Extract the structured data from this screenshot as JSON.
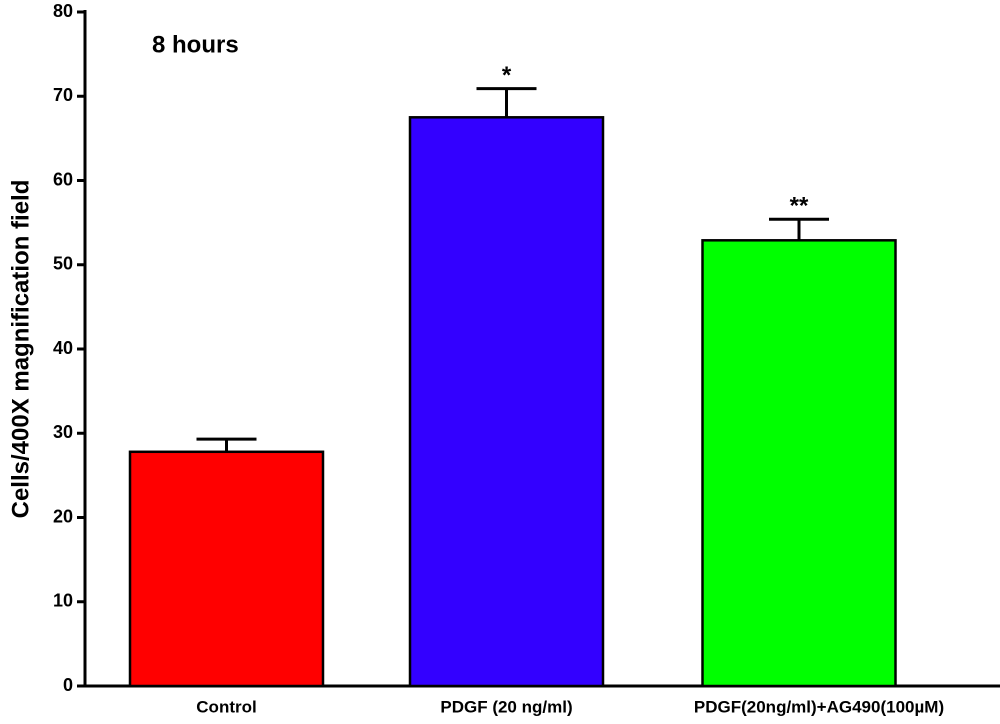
{
  "chart_data": {
    "type": "bar",
    "title": "8 hours",
    "y_label": "Cells/400X magnification field",
    "categories": [
      "Control",
      "PDGF (20 ng/ml)",
      "PDGF(20ng/ml)+AG490(100µM)"
    ],
    "values": [
      27.8,
      67.5,
      52.9
    ],
    "errors": [
      1.5,
      3.4,
      2.5
    ],
    "significance": [
      null,
      "*",
      "**"
    ],
    "colors": [
      "#ff0000",
      "#3300ff",
      "#00ff00"
    ],
    "ylim": [
      0,
      80
    ],
    "yticks": [
      0,
      10,
      20,
      30,
      40,
      50,
      60,
      70,
      80
    ],
    "grid": false
  }
}
